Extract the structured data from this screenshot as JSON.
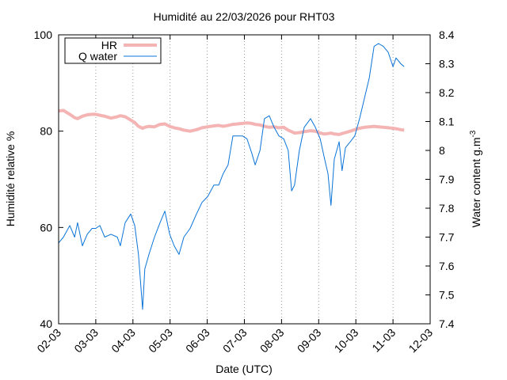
{
  "chart_data": {
    "type": "line",
    "title": "Humidité au 22/03/2026 pour RHT03",
    "xlabel": "Date (UTC)",
    "ylabel": "Humidité relative %",
    "y2label": "Water content g.m",
    "y2label_sup": "-3",
    "xlim": [
      2,
      12
    ],
    "xticks": [
      {
        "value": 2,
        "label": "02-03"
      },
      {
        "value": 3,
        "label": "03-03"
      },
      {
        "value": 4,
        "label": "04-03"
      },
      {
        "value": 5,
        "label": "05-03"
      },
      {
        "value": 6,
        "label": "06-03"
      },
      {
        "value": 7,
        "label": "07-03"
      },
      {
        "value": 8,
        "label": "08-03"
      },
      {
        "value": 9,
        "label": "09-03"
      },
      {
        "value": 10,
        "label": "10-03"
      },
      {
        "value": 11,
        "label": "11-03"
      },
      {
        "value": 12,
        "label": "12-03"
      }
    ],
    "ylim": [
      40,
      100
    ],
    "yticks": [
      40,
      60,
      80,
      100
    ],
    "y2lim": [
      7.4,
      8.4
    ],
    "y2ticks": [
      7.4,
      7.5,
      7.6,
      7.7,
      7.8,
      7.9,
      8,
      8.1,
      8.2,
      8.3,
      8.4
    ],
    "xgrid": true,
    "legend": "upper left",
    "x": [
      2.0,
      2.13,
      2.3,
      2.43,
      2.51,
      2.64,
      2.77,
      2.9,
      3.0,
      3.11,
      3.24,
      3.41,
      3.58,
      3.66,
      3.79,
      3.94,
      4.05,
      4.15,
      4.26,
      4.32,
      4.43,
      4.58,
      4.73,
      4.86,
      4.99,
      5.11,
      5.24,
      5.37,
      5.54,
      5.71,
      5.86,
      6.01,
      6.18,
      6.31,
      6.43,
      6.56,
      6.69,
      6.82,
      6.95,
      7.07,
      7.2,
      7.29,
      7.42,
      7.54,
      7.67,
      7.8,
      7.93,
      8.06,
      8.18,
      8.27,
      8.35,
      8.48,
      8.61,
      8.78,
      8.91,
      9.04,
      9.16,
      9.25,
      9.33,
      9.42,
      9.55,
      9.63,
      9.72,
      9.85,
      9.97,
      10.1,
      10.23,
      10.36,
      10.49,
      10.61,
      10.74,
      10.87,
      11.0,
      11.08,
      11.21,
      11.3
    ],
    "series": [
      {
        "name": "HR",
        "color": "#f4b4b4",
        "axis": "y",
        "values": [
          84.2,
          84.3,
          83.5,
          82.8,
          82.6,
          83.1,
          83.4,
          83.5,
          83.5,
          83.3,
          83.1,
          82.7,
          83.0,
          83.2,
          83.0,
          82.3,
          81.8,
          81.0,
          80.6,
          80.8,
          81.0,
          80.9,
          81.4,
          81.5,
          81.0,
          80.7,
          80.5,
          80.2,
          80.0,
          80.3,
          80.7,
          80.9,
          81.1,
          81.2,
          81.0,
          81.2,
          81.4,
          81.5,
          81.6,
          81.7,
          81.6,
          81.4,
          81.3,
          81.0,
          80.8,
          80.9,
          80.7,
          80.8,
          80.2,
          79.9,
          79.6,
          79.7,
          79.9,
          80.1,
          80.0,
          79.6,
          79.4,
          79.5,
          79.6,
          79.4,
          79.3,
          79.5,
          79.7,
          80.0,
          80.3,
          80.6,
          80.8,
          80.9,
          81.0,
          80.9,
          80.8,
          80.7,
          80.6,
          80.5,
          80.3,
          80.2
        ]
      },
      {
        "name": "Q water",
        "color": "#0a74d8",
        "axis": "y2",
        "values": [
          7.68,
          7.7,
          7.74,
          7.7,
          7.75,
          7.67,
          7.71,
          7.73,
          7.73,
          7.74,
          7.7,
          7.71,
          7.7,
          7.67,
          7.75,
          7.78,
          7.74,
          7.64,
          7.45,
          7.59,
          7.64,
          7.7,
          7.75,
          7.79,
          7.71,
          7.67,
          7.64,
          7.7,
          7.73,
          7.78,
          7.82,
          7.84,
          7.88,
          7.88,
          7.92,
          7.95,
          8.05,
          8.05,
          8.05,
          8.04,
          7.99,
          7.95,
          8.0,
          8.11,
          8.12,
          8.08,
          8.05,
          8.04,
          8.0,
          7.86,
          7.88,
          8.0,
          8.08,
          8.11,
          8.08,
          8.04,
          7.97,
          7.92,
          7.81,
          7.97,
          8.03,
          7.93,
          8.01,
          8.03,
          8.05,
          8.11,
          8.18,
          8.25,
          8.36,
          8.37,
          8.36,
          8.34,
          8.29,
          8.32,
          8.3,
          8.29
        ]
      }
    ]
  }
}
